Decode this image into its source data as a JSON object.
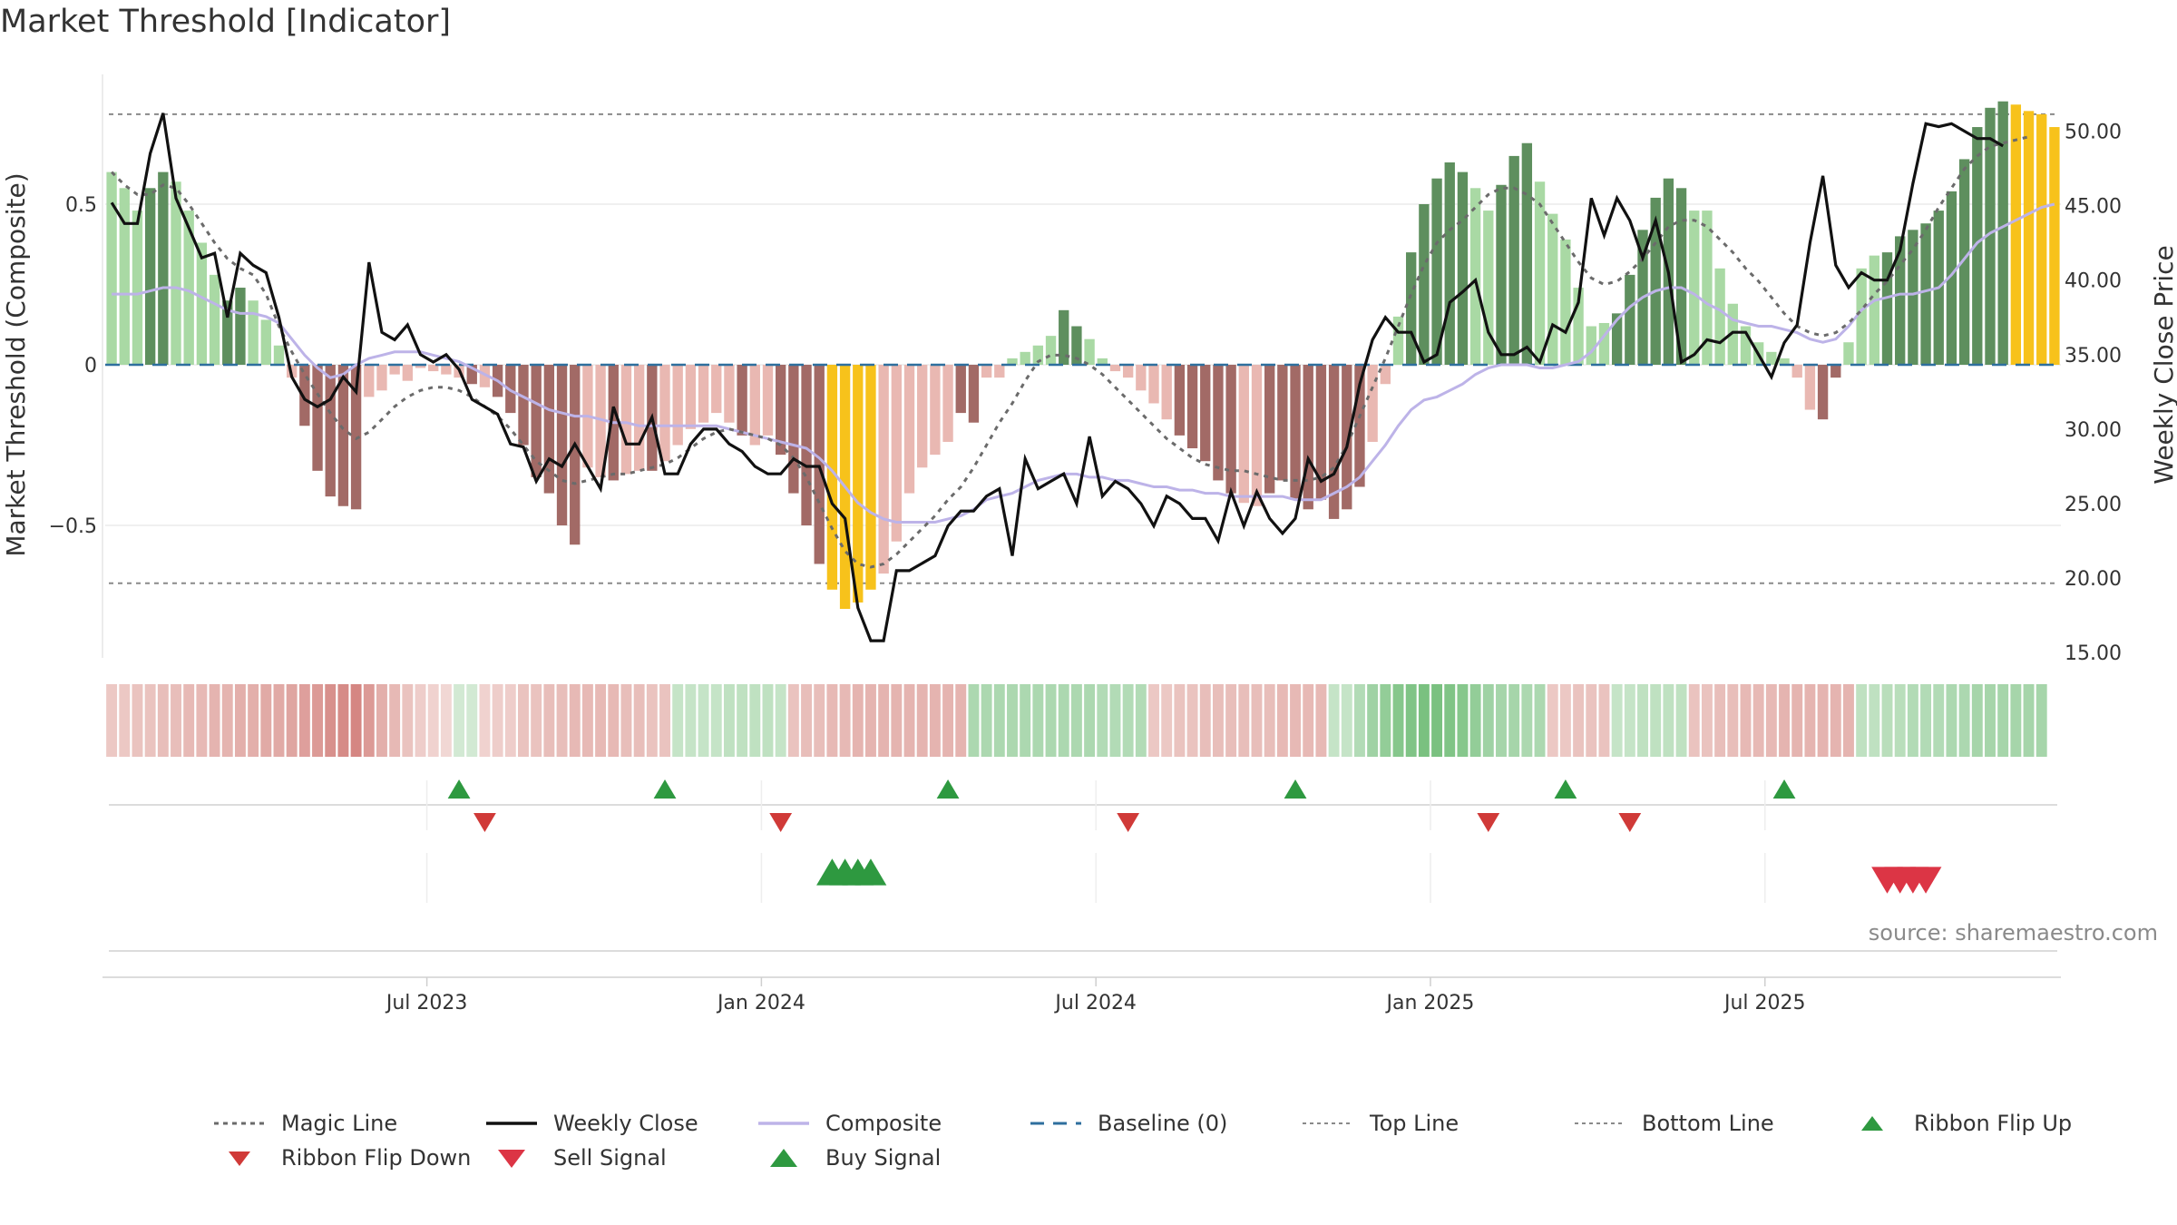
{
  "title": "Market Threshold [Indicator]",
  "source": "source: sharemaestro.com",
  "colors": {
    "bar_green_light": "#a9d9a4",
    "bar_green_dark": "#5e8f5e",
    "bar_red_light": "#e9b8b2",
    "bar_red_dark": "#a26a66",
    "bar_gold": "#f7c21b",
    "magic_line": "#6b6b6b",
    "weekly_close": "#111111",
    "composite": "#bdb3e8",
    "baseline": "#2e6f9e",
    "threshold_line": "#8a8a8a",
    "flip_up": "#2e9940",
    "flip_down": "#d03a38",
    "sell": "#dc3545",
    "buy": "#2e9940"
  },
  "chart_data": {
    "type": "bar",
    "title": "Market Threshold [Indicator]",
    "ylabel": "Market Threshold (Composite)",
    "y2label": "Weekly Close Price",
    "ylim": [
      -0.9,
      0.9
    ],
    "y2lim": [
      14.0,
      53.0
    ],
    "y_ticks": [
      {
        "v": 0.5,
        "label": "0.5"
      },
      {
        "v": 0,
        "label": "0"
      },
      {
        "v": -0.5,
        "label": "−0.5"
      }
    ],
    "y2_ticks": [
      "15.00",
      "20.00",
      "25.00",
      "30.00",
      "35.00",
      "40.00",
      "45.00",
      "50.00"
    ],
    "x_ticks": [
      {
        "week": 24.5,
        "label": "Jul 2023"
      },
      {
        "week": 50.5,
        "label": "Jan 2024"
      },
      {
        "week": 76.5,
        "label": "Jul 2024"
      },
      {
        "week": 102.5,
        "label": "Jan 2025"
      },
      {
        "week": 128.5,
        "label": "Jul 2025"
      }
    ],
    "top_line": 0.78,
    "bottom_line": -0.68,
    "baseline": 0,
    "composite_bars": [
      0.6,
      0.55,
      0.48,
      0.55,
      0.6,
      0.57,
      0.48,
      0.38,
      0.28,
      0.2,
      0.24,
      0.2,
      0.14,
      0.06,
      -0.04,
      -0.19,
      -0.33,
      -0.41,
      -0.44,
      -0.45,
      -0.1,
      -0.08,
      -0.03,
      -0.05,
      -0.01,
      -0.02,
      -0.03,
      -0.04,
      -0.06,
      -0.07,
      -0.1,
      -0.15,
      -0.25,
      -0.35,
      -0.4,
      -0.5,
      -0.56,
      -0.32,
      -0.35,
      -0.36,
      -0.34,
      -0.33,
      -0.33,
      -0.3,
      -0.25,
      -0.2,
      -0.18,
      -0.15,
      -0.18,
      -0.22,
      -0.25,
      -0.22,
      -0.28,
      -0.4,
      -0.5,
      -0.62,
      -0.7,
      -0.76,
      -0.74,
      -0.7,
      -0.65,
      -0.55,
      -0.4,
      -0.32,
      -0.28,
      -0.24,
      -0.15,
      -0.18,
      -0.04,
      -0.04,
      0.02,
      0.04,
      0.06,
      0.09,
      0.17,
      0.12,
      0.08,
      0.02,
      -0.02,
      -0.04,
      -0.08,
      -0.12,
      -0.17,
      -0.22,
      -0.26,
      -0.3,
      -0.36,
      -0.4,
      -0.43,
      -0.44,
      -0.4,
      -0.36,
      -0.42,
      -0.45,
      -0.42,
      -0.48,
      -0.45,
      -0.38,
      -0.24,
      -0.06,
      0.15,
      0.35,
      0.5,
      0.58,
      0.63,
      0.6,
      0.55,
      0.48,
      0.56,
      0.65,
      0.69,
      0.57,
      0.47,
      0.39,
      0.24,
      0.12,
      0.13,
      0.16,
      0.28,
      0.42,
      0.52,
      0.58,
      0.55,
      0.48,
      0.48,
      0.3,
      0.19,
      0.12,
      0.07,
      0.04,
      0.02,
      -0.04,
      -0.14,
      -0.17,
      -0.04,
      0.07,
      0.3,
      0.34,
      0.35,
      0.4,
      0.42,
      0.44,
      0.48,
      0.54,
      0.64,
      0.74,
      0.8,
      0.82,
      0.81,
      0.79,
      0.78,
      0.74
    ],
    "bar_tone": [
      "L",
      "L",
      "L",
      "D",
      "D",
      "L",
      "L",
      "L",
      "L",
      "D",
      "D",
      "L",
      "L",
      "L",
      "L",
      "D",
      "D",
      "D",
      "D",
      "D",
      "L",
      "L",
      "L",
      "L",
      "L",
      "L",
      "L",
      "L",
      "D",
      "L",
      "D",
      "D",
      "D",
      "D",
      "D",
      "D",
      "D",
      "L",
      "L",
      "D",
      "L",
      "L",
      "D",
      "L",
      "L",
      "L",
      "L",
      "L",
      "L",
      "D",
      "L",
      "L",
      "D",
      "D",
      "D",
      "D",
      "G",
      "G",
      "G",
      "G",
      "L",
      "L",
      "L",
      "L",
      "L",
      "L",
      "D",
      "D",
      "L",
      "L",
      "L",
      "L",
      "L",
      "L",
      "D",
      "D",
      "L",
      "L",
      "L",
      "L",
      "L",
      "L",
      "L",
      "D",
      "D",
      "D",
      "D",
      "D",
      "L",
      "L",
      "D",
      "D",
      "D",
      "D",
      "D",
      "D",
      "D",
      "D",
      "L",
      "L",
      "L",
      "D",
      "D",
      "D",
      "D",
      "D",
      "L",
      "L",
      "D",
      "D",
      "D",
      "L",
      "L",
      "L",
      "L",
      "L",
      "L",
      "D",
      "D",
      "D",
      "D",
      "D",
      "D",
      "L",
      "L",
      "L",
      "L",
      "L",
      "L",
      "L",
      "L",
      "L",
      "L",
      "D",
      "D",
      "L",
      "L",
      "L",
      "D",
      "D",
      "D",
      "D",
      "D",
      "D",
      "D",
      "D",
      "D",
      "D",
      "G",
      "G",
      "G",
      "G",
      "G",
      "G",
      "L"
    ],
    "weekly_close": [
      45.2,
      43.8,
      43.8,
      48.5,
      51.2,
      45.5,
      43.5,
      41.5,
      41.8,
      37.5,
      41.8,
      41.0,
      40.5,
      37.5,
      33.5,
      32.0,
      31.5,
      32.0,
      33.5,
      32.5,
      41.2,
      36.5,
      36.0,
      37.0,
      35.0,
      34.5,
      35.0,
      34.0,
      32.0,
      31.5,
      31.0,
      29.0,
      28.8,
      26.5,
      28.0,
      27.5,
      29.0,
      27.5,
      26.0,
      31.5,
      29.0,
      29.0,
      30.8,
      27.0,
      27.0,
      29.0,
      30.0,
      30.0,
      29.0,
      28.5,
      27.5,
      27.0,
      27.0,
      28.0,
      27.5,
      27.5,
      25.0,
      24.0,
      18.0,
      15.8,
      15.8,
      20.5,
      20.5,
      21.0,
      21.5,
      23.5,
      24.5,
      24.5,
      25.5,
      26.0,
      21.5,
      28.0,
      26.0,
      26.5,
      27.0,
      25.0,
      29.5,
      25.5,
      26.5,
      26.0,
      25.0,
      23.5,
      25.5,
      25.0,
      24.0,
      24.0,
      22.5,
      25.8,
      23.5,
      25.8,
      24.0,
      23.0,
      24.0,
      28.0,
      26.5,
      27.0,
      28.8,
      33.0,
      36.0,
      37.5,
      36.5,
      36.5,
      34.5,
      35.0,
      38.5,
      39.2,
      40.0,
      36.5,
      35.0,
      35.0,
      35.5,
      34.5,
      37.0,
      36.5,
      38.5,
      45.5,
      43.0,
      45.5,
      44.0,
      41.5,
      44.0,
      40.5,
      34.5,
      35.0,
      36.0,
      35.8,
      36.5,
      36.5,
      35.0,
      33.5,
      35.8,
      37.0,
      42.5,
      47.0,
      41.0,
      39.5,
      40.5,
      40.0,
      40.0,
      42.0,
      46.5,
      50.5,
      50.3,
      50.5,
      50.0,
      49.5,
      49.5,
      49.0
    ],
    "magic_line": [
      0.6,
      0.56,
      0.53,
      0.53,
      0.56,
      0.55,
      0.5,
      0.44,
      0.38,
      0.33,
      0.3,
      0.28,
      0.22,
      0.12,
      0.04,
      -0.03,
      -0.09,
      -0.15,
      -0.2,
      -0.23,
      -0.21,
      -0.17,
      -0.13,
      -0.1,
      -0.08,
      -0.07,
      -0.07,
      -0.08,
      -0.1,
      -0.13,
      -0.16,
      -0.2,
      -0.25,
      -0.3,
      -0.33,
      -0.36,
      -0.37,
      -0.36,
      -0.35,
      -0.34,
      -0.34,
      -0.33,
      -0.32,
      -0.31,
      -0.29,
      -0.26,
      -0.23,
      -0.21,
      -0.2,
      -0.21,
      -0.22,
      -0.23,
      -0.25,
      -0.29,
      -0.35,
      -0.43,
      -0.51,
      -0.58,
      -0.62,
      -0.63,
      -0.62,
      -0.59,
      -0.55,
      -0.51,
      -0.47,
      -0.42,
      -0.38,
      -0.32,
      -0.25,
      -0.18,
      -0.12,
      -0.05,
      0.01,
      0.03,
      0.03,
      0.02,
      0.0,
      -0.03,
      -0.07,
      -0.11,
      -0.15,
      -0.19,
      -0.23,
      -0.26,
      -0.29,
      -0.31,
      -0.32,
      -0.33,
      -0.33,
      -0.34,
      -0.35,
      -0.36,
      -0.36,
      -0.36,
      -0.35,
      -0.32,
      -0.25,
      -0.16,
      -0.07,
      0.02,
      0.12,
      0.22,
      0.31,
      0.38,
      0.42,
      0.45,
      0.49,
      0.53,
      0.55,
      0.55,
      0.53,
      0.5,
      0.44,
      0.38,
      0.32,
      0.27,
      0.25,
      0.26,
      0.29,
      0.33,
      0.38,
      0.43,
      0.45,
      0.45,
      0.43,
      0.39,
      0.35,
      0.3,
      0.26,
      0.21,
      0.16,
      0.12,
      0.1,
      0.09,
      0.1,
      0.13,
      0.17,
      0.22,
      0.26,
      0.31,
      0.36,
      0.42,
      0.49,
      0.55,
      0.61,
      0.65,
      0.68,
      0.69,
      0.7,
      0.71
    ],
    "composite_line": [
      0.22,
      0.22,
      0.22,
      0.23,
      0.24,
      0.24,
      0.23,
      0.21,
      0.19,
      0.17,
      0.16,
      0.16,
      0.15,
      0.13,
      0.08,
      0.03,
      -0.01,
      -0.04,
      -0.03,
      0.0,
      0.02,
      0.03,
      0.04,
      0.04,
      0.04,
      0.03,
      0.02,
      0.01,
      -0.01,
      -0.03,
      -0.05,
      -0.08,
      -0.1,
      -0.12,
      -0.14,
      -0.15,
      -0.16,
      -0.16,
      -0.17,
      -0.18,
      -0.18,
      -0.19,
      -0.19,
      -0.19,
      -0.19,
      -0.19,
      -0.19,
      -0.19,
      -0.2,
      -0.21,
      -0.22,
      -0.23,
      -0.24,
      -0.25,
      -0.26,
      -0.29,
      -0.33,
      -0.38,
      -0.43,
      -0.46,
      -0.48,
      -0.49,
      -0.49,
      -0.49,
      -0.49,
      -0.48,
      -0.47,
      -0.45,
      -0.42,
      -0.41,
      -0.4,
      -0.38,
      -0.36,
      -0.35,
      -0.34,
      -0.34,
      -0.35,
      -0.35,
      -0.36,
      -0.36,
      -0.37,
      -0.38,
      -0.38,
      -0.39,
      -0.39,
      -0.4,
      -0.4,
      -0.41,
      -0.41,
      -0.41,
      -0.41,
      -0.41,
      -0.42,
      -0.42,
      -0.42,
      -0.4,
      -0.38,
      -0.35,
      -0.3,
      -0.25,
      -0.19,
      -0.14,
      -0.11,
      -0.1,
      -0.08,
      -0.06,
      -0.03,
      -0.01,
      0.0,
      0.0,
      0.0,
      -0.01,
      -0.01,
      0.0,
      0.01,
      0.04,
      0.09,
      0.14,
      0.18,
      0.21,
      0.23,
      0.24,
      0.24,
      0.22,
      0.19,
      0.17,
      0.14,
      0.13,
      0.12,
      0.12,
      0.11,
      0.1,
      0.08,
      0.07,
      0.08,
      0.12,
      0.17,
      0.2,
      0.21,
      0.22,
      0.22,
      0.23,
      0.24,
      0.28,
      0.33,
      0.38,
      0.41,
      0.43,
      0.45,
      0.47,
      0.49,
      0.5
    ],
    "ribbon": [
      -0.25,
      -0.25,
      -0.3,
      -0.3,
      -0.35,
      -0.35,
      -0.4,
      -0.4,
      -0.45,
      -0.45,
      -0.5,
      -0.5,
      -0.55,
      -0.55,
      -0.6,
      -0.65,
      -0.7,
      -0.8,
      -0.85,
      -0.9,
      -0.7,
      -0.5,
      -0.4,
      -0.3,
      -0.2,
      -0.15,
      -0.1,
      0.2,
      0.2,
      -0.15,
      -0.2,
      -0.2,
      -0.3,
      -0.3,
      -0.35,
      -0.35,
      -0.4,
      -0.4,
      -0.4,
      -0.4,
      -0.35,
      -0.35,
      -0.3,
      -0.3,
      0.3,
      0.3,
      0.3,
      0.3,
      0.35,
      0.35,
      0.35,
      0.35,
      0.3,
      -0.3,
      -0.35,
      -0.35,
      -0.4,
      -0.4,
      -0.45,
      -0.45,
      -0.45,
      -0.45,
      -0.45,
      -0.45,
      -0.45,
      -0.45,
      -0.45,
      0.5,
      0.5,
      0.5,
      0.5,
      0.5,
      0.5,
      0.5,
      0.5,
      0.5,
      0.5,
      0.45,
      0.45,
      0.45,
      0.45,
      -0.25,
      -0.25,
      -0.3,
      -0.3,
      -0.35,
      -0.35,
      -0.35,
      -0.35,
      -0.35,
      -0.35,
      -0.4,
      -0.4,
      -0.4,
      -0.4,
      0.3,
      0.3,
      0.45,
      0.6,
      0.7,
      0.8,
      0.85,
      0.9,
      0.9,
      0.85,
      0.8,
      0.7,
      0.6,
      0.55,
      0.55,
      0.5,
      0.5,
      -0.25,
      -0.25,
      -0.3,
      -0.3,
      -0.3,
      0.3,
      0.3,
      0.35,
      0.35,
      0.35,
      0.35,
      -0.3,
      -0.3,
      -0.35,
      -0.35,
      -0.4,
      -0.4,
      -0.4,
      -0.45,
      -0.45,
      -0.45,
      -0.45,
      -0.45,
      -0.45,
      0.35,
      0.35,
      0.4,
      0.4,
      0.45,
      0.45,
      0.45,
      0.5,
      0.5,
      0.55,
      0.55,
      0.55,
      0.55,
      0.55,
      0.55
    ],
    "ribbon_flip_up_weeks": [
      27,
      43,
      65,
      92,
      113,
      130
    ],
    "ribbon_flip_down_weeks": [
      29,
      52,
      79,
      107,
      118
    ],
    "buy_signal_weeks": [
      56,
      57,
      58,
      59
    ],
    "sell_signal_weeks": [
      138,
      139,
      140,
      141
    ],
    "legend": [
      {
        "key": "magic",
        "label": "Magic Line",
        "kind": "dotted",
        "color": "#6b6b6b"
      },
      {
        "key": "close",
        "label": "Weekly Close",
        "kind": "solid",
        "color": "#111111"
      },
      {
        "key": "composite",
        "label": "Composite",
        "kind": "solid-light",
        "color": "#bdb3e8"
      },
      {
        "key": "baseline",
        "label": "Baseline (0)",
        "kind": "dashed",
        "color": "#2e6f9e"
      },
      {
        "key": "top",
        "label": "Top Line",
        "kind": "dotted-light",
        "color": "#8a8a8a"
      },
      {
        "key": "bottom",
        "label": "Bottom Line",
        "kind": "dotted-light",
        "color": "#8a8a8a"
      },
      {
        "key": "flipup",
        "label": "Ribbon Flip Up",
        "kind": "tri-up",
        "color": "#2e9940"
      },
      {
        "key": "flipdown",
        "label": "Ribbon Flip Down",
        "kind": "tri-down",
        "color": "#d03a38"
      },
      {
        "key": "sell",
        "label": "Sell Signal",
        "kind": "tri-down-big",
        "color": "#dc3545"
      },
      {
        "key": "buy",
        "label": "Buy Signal",
        "kind": "tri-up-big",
        "color": "#2e9940"
      }
    ]
  }
}
